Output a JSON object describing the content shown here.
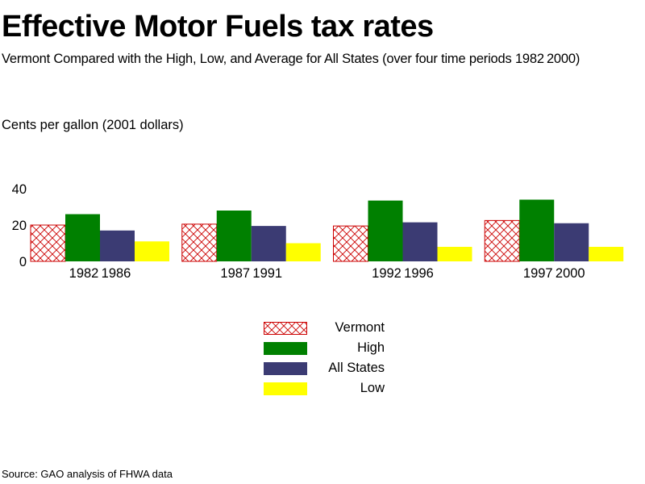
{
  "header": {
    "title": "Effective Motor Fuels tax rates",
    "subtitle": "Vermont Compared with the High, Low, and Average for All States (over four time periods 1982 2000)",
    "units_label": "Cents per gallon (2001 dollars)"
  },
  "footer": {
    "source": "Source: GAO analysis of FHWA data"
  },
  "colors": {
    "vermont": "#cc0000",
    "high": "#008000",
    "all_states": "#3b3b73",
    "low": "#ffff00"
  },
  "chart_data": {
    "type": "bar",
    "title": "Effective Motor Fuels tax rates",
    "subtitle": "Vermont Compared with the High, Low, and Average for All States (over four time periods 1982 2000)",
    "xlabel": "",
    "ylabel": "Cents per gallon (2001 dollars)",
    "categories": [
      "1982 1986",
      "1987 1991",
      "1992 1996",
      "1997 2000"
    ],
    "series": [
      {
        "name": "Vermont",
        "values": [
          20,
          20.5,
          19.5,
          22.5
        ],
        "color": "#cc0000",
        "pattern": "crosshatch"
      },
      {
        "name": "High",
        "values": [
          26,
          28,
          33.5,
          34
        ],
        "color": "#008000"
      },
      {
        "name": "All States",
        "values": [
          17,
          19.5,
          21.5,
          21
        ],
        "color": "#3b3b73"
      },
      {
        "name": "Low",
        "values": [
          11,
          10,
          8,
          8
        ],
        "color": "#ffff00"
      }
    ],
    "ylim": [
      0,
      40
    ],
    "yticks": [
      0,
      20,
      40
    ],
    "grid": false,
    "legend_placement": "bottom-center"
  }
}
